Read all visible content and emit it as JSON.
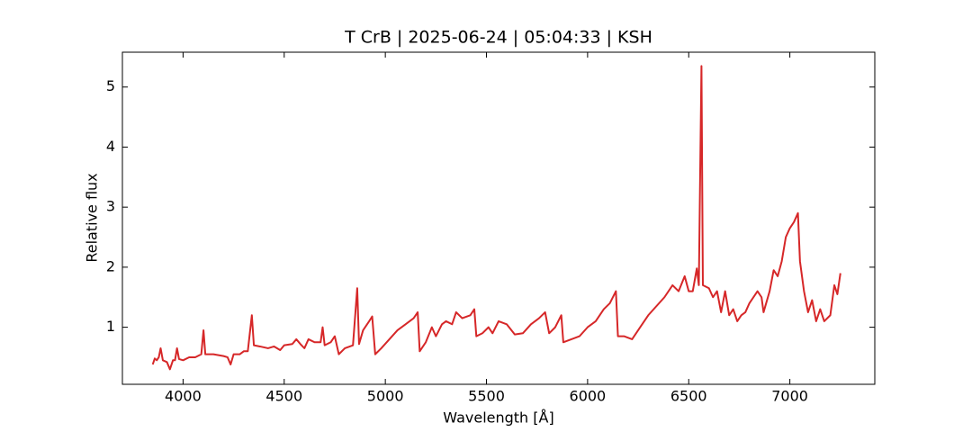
{
  "chart_data": {
    "type": "line",
    "title": "T CrB | 2025-06-24 | 05:04:33 | KSH",
    "xlabel": "Wavelength [Å]",
    "ylabel": "Relative flux",
    "xlim": [
      3700,
      7420
    ],
    "ylim": [
      0.05,
      5.58
    ],
    "xticks": [
      4000,
      4500,
      5000,
      5500,
      6000,
      6500,
      7000
    ],
    "yticks": [
      1,
      2,
      3,
      4,
      5
    ],
    "grid": false,
    "series": [
      {
        "color": "#d62728",
        "x": [
          3850,
          3860,
          3870,
          3880,
          3889,
          3900,
          3920,
          3935,
          3950,
          3960,
          3970,
          3980,
          4000,
          4030,
          4060,
          4090,
          4101,
          4110,
          4150,
          4200,
          4220,
          4235,
          4250,
          4280,
          4300,
          4320,
          4340,
          4350,
          4380,
          4420,
          4450,
          4480,
          4500,
          4540,
          4560,
          4580,
          4600,
          4620,
          4650,
          4680,
          4690,
          4700,
          4730,
          4750,
          4770,
          4800,
          4840,
          4861,
          4870,
          4890,
          4920,
          4935,
          4950,
          4980,
          5020,
          5060,
          5100,
          5140,
          5160,
          5170,
          5200,
          5230,
          5250,
          5280,
          5300,
          5330,
          5350,
          5380,
          5420,
          5440,
          5450,
          5480,
          5510,
          5530,
          5560,
          5600,
          5640,
          5680,
          5720,
          5760,
          5790,
          5810,
          5840,
          5870,
          5880,
          5920,
          5960,
          6000,
          6040,
          6080,
          6110,
          6140,
          6150,
          6180,
          6220,
          6260,
          6300,
          6340,
          6380,
          6420,
          6450,
          6480,
          6500,
          6520,
          6540,
          6550,
          6563,
          6570,
          6600,
          6620,
          6640,
          6660,
          6680,
          6700,
          6720,
          6740,
          6760,
          6780,
          6800,
          6840,
          6860,
          6870,
          6900,
          6920,
          6940,
          6960,
          6980,
          7000,
          7020,
          7040,
          7050,
          7070,
          7090,
          7110,
          7130,
          7150,
          7170,
          7200,
          7220,
          7235,
          7250
        ],
        "values": [
          0.38,
          0.48,
          0.45,
          0.5,
          0.65,
          0.45,
          0.42,
          0.3,
          0.45,
          0.45,
          0.65,
          0.47,
          0.45,
          0.5,
          0.5,
          0.55,
          0.95,
          0.55,
          0.55,
          0.52,
          0.5,
          0.38,
          0.55,
          0.55,
          0.6,
          0.6,
          1.2,
          0.7,
          0.68,
          0.65,
          0.68,
          0.62,
          0.7,
          0.72,
          0.8,
          0.72,
          0.65,
          0.8,
          0.75,
          0.75,
          1.0,
          0.7,
          0.75,
          0.85,
          0.55,
          0.65,
          0.7,
          1.65,
          0.72,
          0.95,
          1.1,
          1.18,
          0.55,
          0.65,
          0.8,
          0.95,
          1.05,
          1.15,
          1.25,
          0.6,
          0.75,
          1.0,
          0.85,
          1.05,
          1.1,
          1.05,
          1.25,
          1.15,
          1.2,
          1.3,
          0.85,
          0.9,
          1.0,
          0.9,
          1.1,
          1.05,
          0.88,
          0.9,
          1.05,
          1.15,
          1.25,
          0.9,
          1.0,
          1.2,
          0.75,
          0.8,
          0.85,
          1.0,
          1.1,
          1.3,
          1.4,
          1.6,
          0.85,
          0.85,
          0.8,
          1.0,
          1.2,
          1.35,
          1.5,
          1.7,
          1.6,
          1.85,
          1.6,
          1.6,
          1.98,
          1.7,
          5.35,
          1.7,
          1.65,
          1.5,
          1.6,
          1.25,
          1.6,
          1.2,
          1.3,
          1.1,
          1.2,
          1.25,
          1.4,
          1.6,
          1.5,
          1.25,
          1.6,
          1.95,
          1.85,
          2.1,
          2.5,
          2.65,
          2.75,
          2.9,
          2.1,
          1.6,
          1.25,
          1.45,
          1.1,
          1.3,
          1.1,
          1.2,
          1.7,
          1.55,
          1.9
        ]
      }
    ]
  }
}
